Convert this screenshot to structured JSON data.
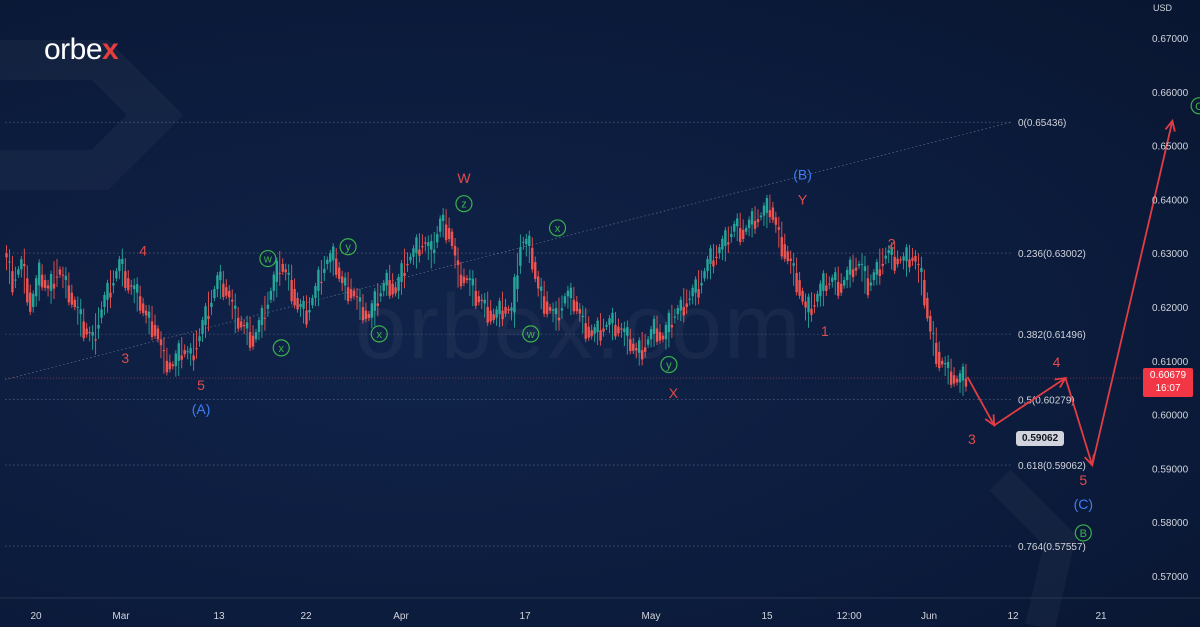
{
  "brand": {
    "logo_text_1": "orbe",
    "logo_text_x": "x",
    "watermark": "orbex.com"
  },
  "axis": {
    "currency": "USD"
  },
  "current_price": {
    "value": "0.60679",
    "countdown": "16:07"
  },
  "callout": {
    "value": "0.59062"
  },
  "colors": {
    "background": "#0c1c3d",
    "candle_up": "#26a69a",
    "candle_down": "#ef5350",
    "wave_red": "#e04b4b",
    "wave_blue": "#3f7df3",
    "wave_green": "#3bb34a",
    "projection": "#e23c44",
    "price_tag": "#f23645",
    "grid_line": "#8a94a6"
  },
  "chart_data": {
    "type": "line",
    "y_axis": {
      "min": 0.563,
      "max": 0.675,
      "ticks": [
        "0.67000",
        "0.66000",
        "0.65000",
        "0.64000",
        "0.63000",
        "0.62000",
        "0.61000",
        "0.60000",
        "0.59000",
        "0.58000",
        "0.57000"
      ]
    },
    "x_tick_labels": [
      "20",
      "Mar",
      "13",
      "22",
      "Apr",
      "17",
      "May",
      "15",
      "12:00",
      "Jun",
      "12",
      "21"
    ],
    "fib_levels": [
      {
        "label": "0(0.65436)",
        "value": 0.65436
      },
      {
        "label": "0.236(0.63002)",
        "value": 0.63002
      },
      {
        "label": "0.382(0.61496)",
        "value": 0.61496
      },
      {
        "label": "0.5(0.60279)",
        "value": 0.60279
      },
      {
        "label": "0.618(0.59062)",
        "value": 0.59062
      },
      {
        "label": "0.764(0.57557)",
        "value": 0.57557
      }
    ],
    "current_price": 0.60679,
    "price_series": [
      [
        0,
        0.63
      ],
      [
        2,
        0.625
      ],
      [
        4,
        0.628
      ],
      [
        6,
        0.62
      ],
      [
        8,
        0.626
      ],
      [
        10,
        0.623
      ],
      [
        12,
        0.627
      ],
      [
        14,
        0.624
      ],
      [
        16,
        0.62
      ],
      [
        18,
        0.616
      ],
      [
        20,
        0.614
      ],
      [
        22,
        0.62
      ],
      [
        24,
        0.624
      ],
      [
        26,
        0.628
      ],
      [
        28,
        0.624
      ],
      [
        30,
        0.622
      ],
      [
        32,
        0.618
      ],
      [
        34,
        0.616
      ],
      [
        36,
        0.61
      ],
      [
        38,
        0.609
      ],
      [
        40,
        0.612
      ],
      [
        42,
        0.611
      ],
      [
        44,
        0.615
      ],
      [
        46,
        0.62
      ],
      [
        48,
        0.625
      ],
      [
        50,
        0.623
      ],
      [
        52,
        0.618
      ],
      [
        54,
        0.616
      ],
      [
        56,
        0.614
      ],
      [
        58,
        0.618
      ],
      [
        60,
        0.623
      ],
      [
        62,
        0.628
      ],
      [
        64,
        0.625
      ],
      [
        66,
        0.62
      ],
      [
        68,
        0.619
      ],
      [
        70,
        0.623
      ],
      [
        72,
        0.628
      ],
      [
        74,
        0.629
      ],
      [
        76,
        0.624
      ],
      [
        78,
        0.623
      ],
      [
        80,
        0.62
      ],
      [
        82,
        0.618
      ],
      [
        84,
        0.622
      ],
      [
        86,
        0.625
      ],
      [
        88,
        0.623
      ],
      [
        90,
        0.628
      ],
      [
        92,
        0.63
      ],
      [
        94,
        0.632
      ],
      [
        96,
        0.63
      ],
      [
        98,
        0.636
      ],
      [
        100,
        0.634
      ],
      [
        102,
        0.626
      ],
      [
        104,
        0.625
      ],
      [
        106,
        0.622
      ],
      [
        108,
        0.62
      ],
      [
        110,
        0.618
      ],
      [
        112,
        0.62
      ],
      [
        114,
        0.619
      ],
      [
        116,
        0.632
      ],
      [
        118,
        0.631
      ],
      [
        120,
        0.623
      ],
      [
        122,
        0.62
      ],
      [
        124,
        0.618
      ],
      [
        126,
        0.622
      ],
      [
        128,
        0.621
      ],
      [
        130,
        0.617
      ],
      [
        132,
        0.615
      ],
      [
        134,
        0.616
      ],
      [
        136,
        0.617
      ],
      [
        138,
        0.616
      ],
      [
        140,
        0.614
      ],
      [
        142,
        0.6115
      ],
      [
        144,
        0.613
      ],
      [
        146,
        0.616
      ],
      [
        148,
        0.614
      ],
      [
        150,
        0.618
      ],
      [
        152,
        0.62
      ],
      [
        154,
        0.622
      ],
      [
        156,
        0.624
      ],
      [
        158,
        0.628
      ],
      [
        160,
        0.63
      ],
      [
        162,
        0.632
      ],
      [
        164,
        0.635
      ],
      [
        166,
        0.634
      ],
      [
        168,
        0.636
      ],
      [
        170,
        0.637
      ],
      [
        172,
        0.6385
      ],
      [
        174,
        0.633
      ],
      [
        176,
        0.629
      ],
      [
        178,
        0.625
      ],
      [
        180,
        0.619
      ],
      [
        182,
        0.621
      ],
      [
        184,
        0.624
      ],
      [
        186,
        0.625
      ],
      [
        188,
        0.624
      ],
      [
        190,
        0.627
      ],
      [
        192,
        0.628
      ],
      [
        194,
        0.624
      ],
      [
        196,
        0.627
      ],
      [
        198,
        0.63
      ],
      [
        200,
        0.629
      ],
      [
        202,
        0.6285
      ],
      [
        204,
        0.6295
      ],
      [
        206,
        0.625
      ],
      [
        208,
        0.615
      ],
      [
        210,
        0.61
      ],
      [
        212,
        0.608
      ],
      [
        214,
        0.606
      ],
      [
        216,
        0.607
      ]
    ],
    "projection_path": [
      [
        216,
        0.607
      ],
      [
        222,
        0.598
      ],
      [
        238,
        0.6068
      ],
      [
        244,
        0.5906
      ],
      [
        262,
        0.6546
      ]
    ],
    "trendline": [
      [
        0,
        0.6065
      ],
      [
        250,
        0.6546
      ]
    ],
    "wave_labels": [
      {
        "text": "4",
        "x": 31,
        "y": 0.6305,
        "style": "red"
      },
      {
        "text": "3",
        "x": 27,
        "y": 0.6105,
        "style": "red"
      },
      {
        "text": "5",
        "x": 44,
        "y": 0.6055,
        "style": "red"
      },
      {
        "text": "(A)",
        "x": 44,
        "y": 0.601,
        "style": "blue"
      },
      {
        "text": "w",
        "x": 59,
        "y": 0.629,
        "style": "green-circle"
      },
      {
        "text": "x",
        "x": 62,
        "y": 0.6124,
        "style": "green-circle"
      },
      {
        "text": "y",
        "x": 77,
        "y": 0.6312,
        "style": "green-circle"
      },
      {
        "text": "x",
        "x": 84,
        "y": 0.615,
        "style": "green-circle"
      },
      {
        "text": "W",
        "x": 103,
        "y": 0.644,
        "style": "red"
      },
      {
        "text": "z",
        "x": 103,
        "y": 0.6392,
        "style": "green-circle"
      },
      {
        "text": "x",
        "x": 124,
        "y": 0.6347,
        "style": "green-circle"
      },
      {
        "text": "w",
        "x": 118,
        "y": 0.615,
        "style": "green-circle"
      },
      {
        "text": "y",
        "x": 149,
        "y": 0.6093,
        "style": "green-circle"
      },
      {
        "text": "X",
        "x": 150,
        "y": 0.604,
        "style": "red"
      },
      {
        "text": "(B)",
        "x": 179,
        "y": 0.6446,
        "style": "blue"
      },
      {
        "text": "Y",
        "x": 179,
        "y": 0.64,
        "style": "red"
      },
      {
        "text": "1",
        "x": 184,
        "y": 0.6155,
        "style": "red"
      },
      {
        "text": "2",
        "x": 199,
        "y": 0.6318,
        "style": "red"
      },
      {
        "text": "3",
        "x": 217,
        "y": 0.5955,
        "style": "red"
      },
      {
        "text": "4",
        "x": 236,
        "y": 0.6098,
        "style": "red"
      },
      {
        "text": "5",
        "x": 242,
        "y": 0.5878,
        "style": "red"
      },
      {
        "text": "(C)",
        "x": 242,
        "y": 0.5834,
        "style": "blue"
      },
      {
        "text": "B",
        "x": 242,
        "y": 0.578,
        "style": "green-circle"
      },
      {
        "text": "C",
        "x": 268,
        "y": 0.6574,
        "style": "green-circle"
      }
    ]
  }
}
